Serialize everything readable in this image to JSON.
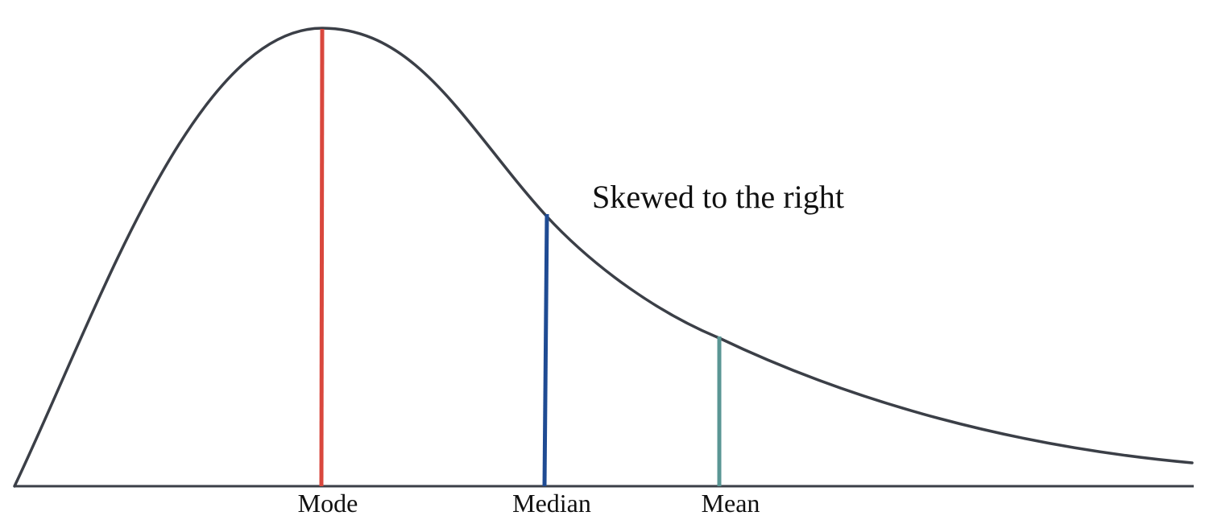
{
  "annotation": "Skewed to the right",
  "markers": [
    {
      "key": "mode",
      "label": "Mode",
      "color": "#d9473d"
    },
    {
      "key": "median",
      "label": "Median",
      "color": "#1f4b93"
    },
    {
      "key": "mean",
      "label": "Mean",
      "color": "#5a9694"
    }
  ],
  "colors": {
    "curve": "#3b3f47",
    "baseline": "#3b3f47",
    "background": "#ffffff"
  }
}
